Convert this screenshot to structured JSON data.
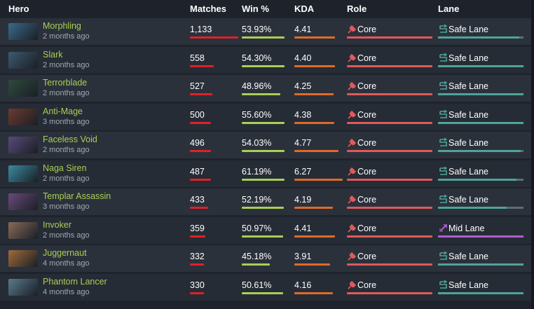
{
  "headers": {
    "hero": "Hero",
    "matches": "Matches",
    "winrate": "Win %",
    "kda": "KDA",
    "role": "Role",
    "lane": "Lane"
  },
  "colors": {
    "hero_name": "#a9cf54",
    "matches_bar": "#e0202a",
    "winrate_bar": "#a9cf54",
    "kda_bar": "#e06a2a",
    "role_bar": "#e05a5a",
    "safe_lane": "#4fa39a",
    "mid_lane": "#b05fd0"
  },
  "rows": [
    {
      "hero": "Morphling",
      "time": "2 months ago",
      "matches": "1,133",
      "matches_fill": 1.0,
      "winrate": "53.93%",
      "winrate_fill": 1.0,
      "kda": "4.41",
      "kda_fill": 0.84,
      "role": "Core",
      "role_icon": "core-icon",
      "lane": "Safe Lane",
      "lane_type": "safe",
      "lane_fill": 0.95,
      "img_color": "#3a6a8a"
    },
    {
      "hero": "Slark",
      "time": "2 months ago",
      "matches": "558",
      "matches_fill": 0.49,
      "winrate": "54.30%",
      "winrate_fill": 1.0,
      "kda": "4.40",
      "kda_fill": 0.84,
      "role": "Core",
      "role_icon": "core-icon",
      "lane": "Safe Lane",
      "lane_type": "safe",
      "lane_fill": 1.0,
      "img_color": "#3d5a6e"
    },
    {
      "hero": "Terrorblade",
      "time": "2 months ago",
      "matches": "527",
      "matches_fill": 0.47,
      "winrate": "48.96%",
      "winrate_fill": 0.9,
      "kda": "4.25",
      "kda_fill": 0.81,
      "role": "Core",
      "role_icon": "core-icon",
      "lane": "Safe Lane",
      "lane_type": "safe",
      "lane_fill": 1.0,
      "img_color": "#2f4a3d"
    },
    {
      "hero": "Anti-Mage",
      "time": "3 months ago",
      "matches": "500",
      "matches_fill": 0.44,
      "winrate": "55.60%",
      "winrate_fill": 1.0,
      "kda": "4.38",
      "kda_fill": 0.83,
      "role": "Core",
      "role_icon": "core-icon",
      "lane": "Safe Lane",
      "lane_type": "safe",
      "lane_fill": 1.0,
      "img_color": "#6e3a2e"
    },
    {
      "hero": "Faceless Void",
      "time": "2 months ago",
      "matches": "496",
      "matches_fill": 0.44,
      "winrate": "54.03%",
      "winrate_fill": 1.0,
      "kda": "4.77",
      "kda_fill": 0.91,
      "role": "Core",
      "role_icon": "core-icon",
      "lane": "Safe Lane",
      "lane_type": "safe",
      "lane_fill": 0.97,
      "img_color": "#5a4a7a"
    },
    {
      "hero": "Naga Siren",
      "time": "2 months ago",
      "matches": "487",
      "matches_fill": 0.43,
      "winrate": "61.19%",
      "winrate_fill": 1.0,
      "kda": "6.27",
      "kda_fill": 1.0,
      "role": "Core",
      "role_icon": "core-icon",
      "lane": "Safe Lane",
      "lane_type": "safe",
      "lane_fill": 0.92,
      "img_color": "#3a8aa0"
    },
    {
      "hero": "Templar Assassin",
      "time": "3 months ago",
      "matches": "433",
      "matches_fill": 0.38,
      "winrate": "52.19%",
      "winrate_fill": 0.99,
      "kda": "4.19",
      "kda_fill": 0.8,
      "role": "Core",
      "role_icon": "core-icon",
      "lane": "Safe Lane",
      "lane_type": "safe",
      "lane_fill": 0.8,
      "img_color": "#6a4a7a"
    },
    {
      "hero": "Invoker",
      "time": "2 months ago",
      "matches": "359",
      "matches_fill": 0.32,
      "winrate": "50.97%",
      "winrate_fill": 0.96,
      "kda": "4.41",
      "kda_fill": 0.84,
      "role": "Core",
      "role_icon": "core-icon",
      "lane": "Mid Lane",
      "lane_type": "mid",
      "lane_fill": 1.0,
      "img_color": "#8a6a5a"
    },
    {
      "hero": "Juggernaut",
      "time": "4 months ago",
      "matches": "332",
      "matches_fill": 0.29,
      "winrate": "45.18%",
      "winrate_fill": 0.65,
      "kda": "3.91",
      "kda_fill": 0.74,
      "role": "Core",
      "role_icon": "core-icon",
      "lane": "Safe Lane",
      "lane_type": "safe",
      "lane_fill": 1.0,
      "img_color": "#a06a3a"
    },
    {
      "hero": "Phantom Lancer",
      "time": "4 months ago",
      "matches": "330",
      "matches_fill": 0.29,
      "winrate": "50.61%",
      "winrate_fill": 0.96,
      "kda": "4.16",
      "kda_fill": 0.79,
      "role": "Core",
      "role_icon": "core-icon",
      "lane": "Safe Lane",
      "lane_type": "safe",
      "lane_fill": 1.0,
      "img_color": "#5a7a8a"
    }
  ]
}
